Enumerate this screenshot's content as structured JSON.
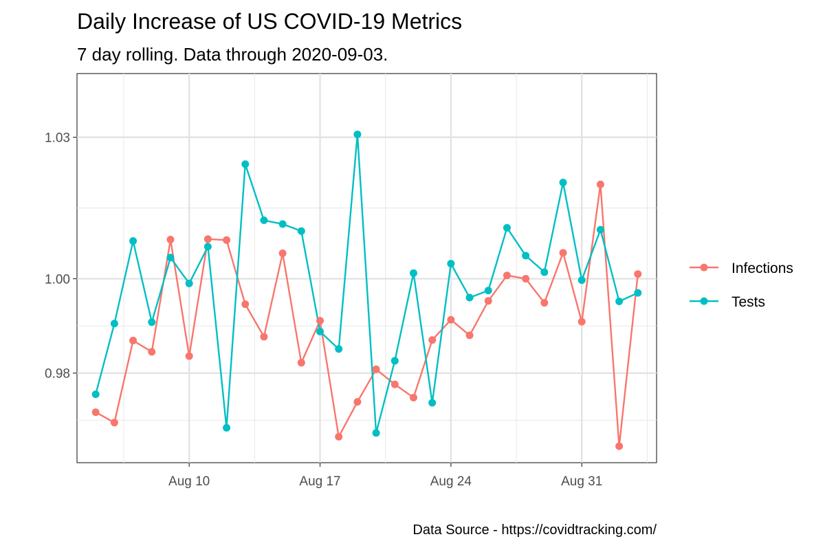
{
  "chart_data": {
    "type": "line",
    "title": "Daily Increase of US COVID-19 Metrics",
    "subtitle": "7 day rolling. Data through 2020-09-03.",
    "caption": "Data Source - https://covidtracking.com/",
    "xlabel": "",
    "ylabel": "",
    "x": [
      "2020-08-05",
      "2020-08-06",
      "2020-08-07",
      "2020-08-08",
      "2020-08-09",
      "2020-08-10",
      "2020-08-11",
      "2020-08-12",
      "2020-08-13",
      "2020-08-14",
      "2020-08-15",
      "2020-08-16",
      "2020-08-17",
      "2020-08-18",
      "2020-08-19",
      "2020-08-20",
      "2020-08-21",
      "2020-08-22",
      "2020-08-23",
      "2020-08-24",
      "2020-08-25",
      "2020-08-26",
      "2020-08-27",
      "2020-08-28",
      "2020-08-29",
      "2020-08-30",
      "2020-08-31",
      "2020-09-01",
      "2020-09-02",
      "2020-09-03"
    ],
    "x_ticks": [
      "2020-08-10",
      "2020-08-17",
      "2020-08-24",
      "2020-08-31"
    ],
    "x_tick_labels": [
      "Aug 10",
      "Aug 17",
      "Aug 24",
      "Aug 31"
    ],
    "y_ticks": [
      0.98,
      1.0,
      1.03
    ],
    "y_tick_labels": [
      "0.98",
      "1.00",
      "1.03"
    ],
    "xlim": [
      "2020-08-04",
      "2020-09-04"
    ],
    "ylim": [
      0.961,
      1.0435
    ],
    "grid": true,
    "legend_position": "right",
    "series": [
      {
        "name": "Infections",
        "color": "#F8766D",
        "values": [
          0.9717,
          0.9695,
          0.9869,
          0.9845,
          1.0083,
          0.9836,
          1.0084,
          1.0082,
          0.9946,
          0.9877,
          1.0054,
          0.9822,
          0.9911,
          0.9665,
          0.9739,
          0.9808,
          0.9776,
          0.9748,
          0.987,
          0.9913,
          0.988,
          0.9953,
          1.0007,
          1.0,
          0.9949,
          1.0055,
          0.9909,
          1.02,
          0.9645,
          1.001
        ]
      },
      {
        "name": "Tests",
        "color": "#00BFC4",
        "values": [
          0.9755,
          0.9905,
          1.008,
          0.9908,
          1.0045,
          0.999,
          1.0068,
          0.9684,
          1.0243,
          1.0124,
          1.0116,
          1.0101,
          0.9888,
          0.9851,
          1.0306,
          0.9673,
          0.9826,
          1.0012,
          0.9737,
          1.0032,
          0.996,
          0.9975,
          1.0108,
          1.0049,
          1.0014,
          1.0204,
          0.9997,
          1.0104,
          0.9952,
          0.997
        ]
      }
    ]
  }
}
